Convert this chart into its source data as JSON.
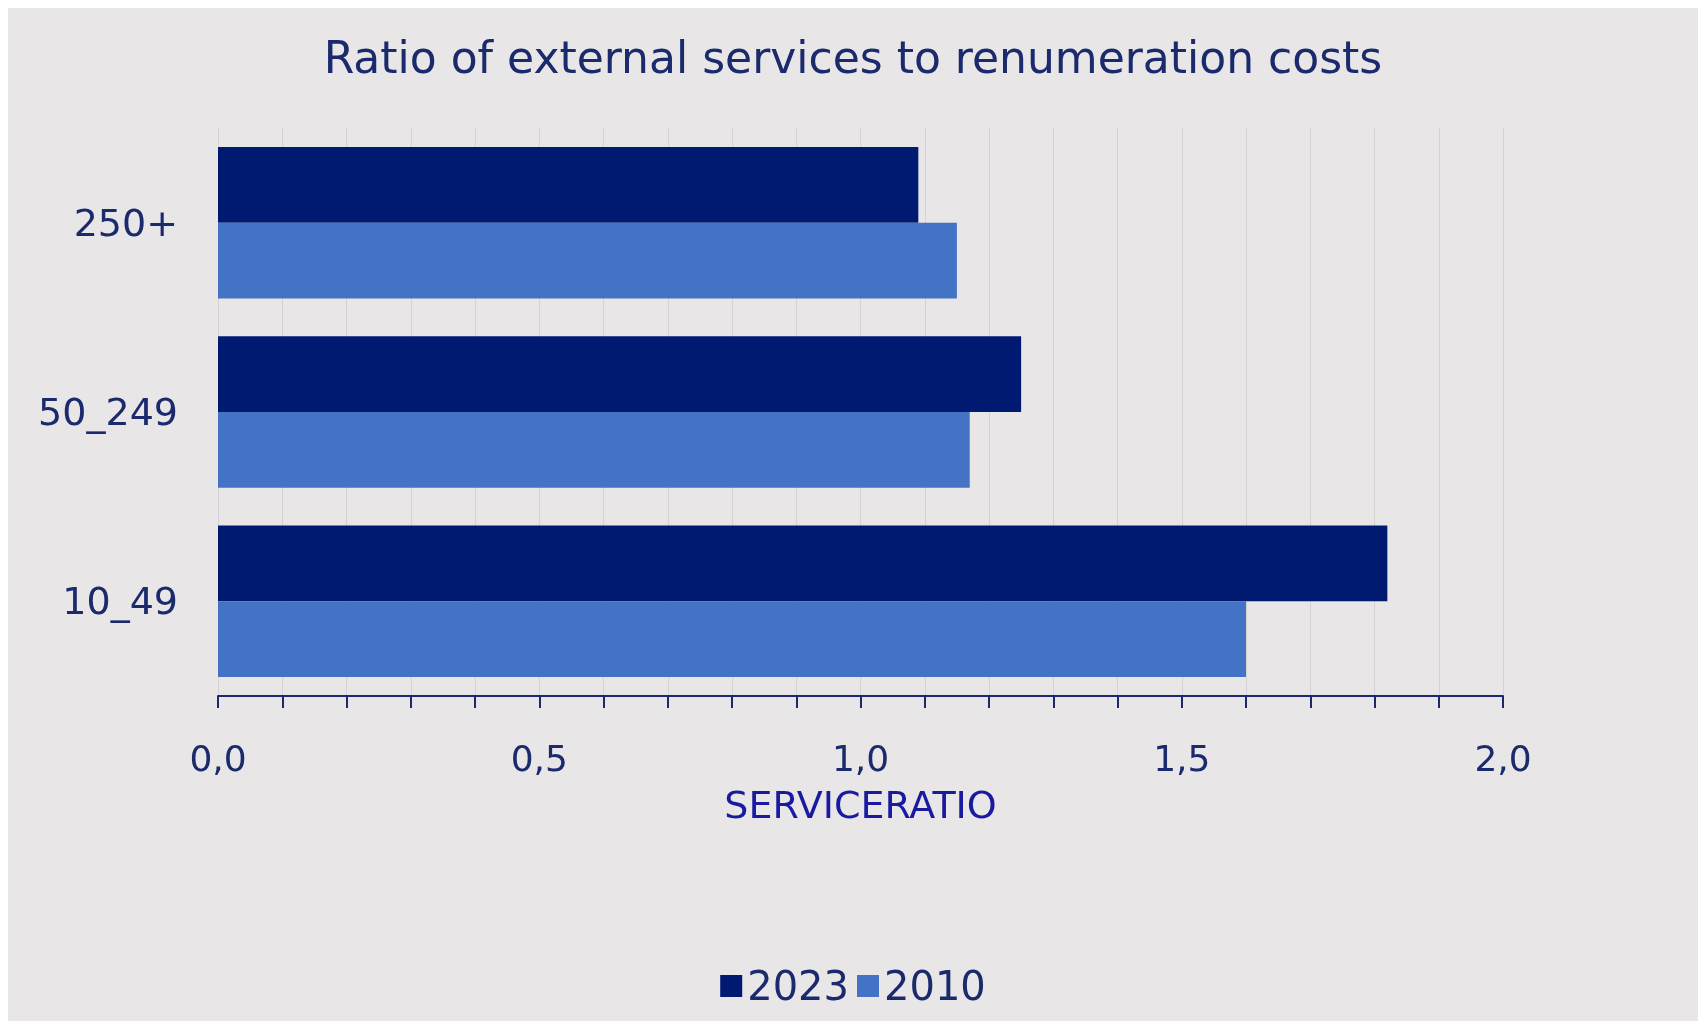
{
  "chart_data": {
    "type": "bar",
    "orientation": "horizontal",
    "title": "Ratio of external services to renumeration costs",
    "xlabel": "SERVICERATIO",
    "categories": [
      "250+",
      "50_249",
      "10_49"
    ],
    "series": [
      {
        "name": "2023",
        "color": "#001a72",
        "values": [
          1.09,
          1.25,
          1.82
        ]
      },
      {
        "name": "2010",
        "color": "#4472c4",
        "values": [
          1.15,
          1.17,
          1.6
        ]
      }
    ],
    "xlim": [
      0,
      2
    ],
    "xticks": [
      {
        "value": 0,
        "label": "0,0"
      },
      {
        "value": 0.1,
        "label": null
      },
      {
        "value": 0.2,
        "label": null
      },
      {
        "value": 0.3,
        "label": null
      },
      {
        "value": 0.4,
        "label": null
      },
      {
        "value": 0.5,
        "label": "0,5"
      },
      {
        "value": 0.6,
        "label": null
      },
      {
        "value": 0.7,
        "label": null
      },
      {
        "value": 0.8,
        "label": null
      },
      {
        "value": 0.9,
        "label": null
      },
      {
        "value": 1,
        "label": "1,0"
      },
      {
        "value": 1.1,
        "label": null
      },
      {
        "value": 1.2,
        "label": null
      },
      {
        "value": 1.3,
        "label": null
      },
      {
        "value": 1.4,
        "label": null
      },
      {
        "value": 1.5,
        "label": "1,5"
      },
      {
        "value": 1.6,
        "label": null
      },
      {
        "value": 1.7,
        "label": null
      },
      {
        "value": 1.8,
        "label": null
      },
      {
        "value": 1.9,
        "label": null
      },
      {
        "value": 2,
        "label": "2,0"
      }
    ],
    "grid": "x",
    "legend": "bottom"
  }
}
